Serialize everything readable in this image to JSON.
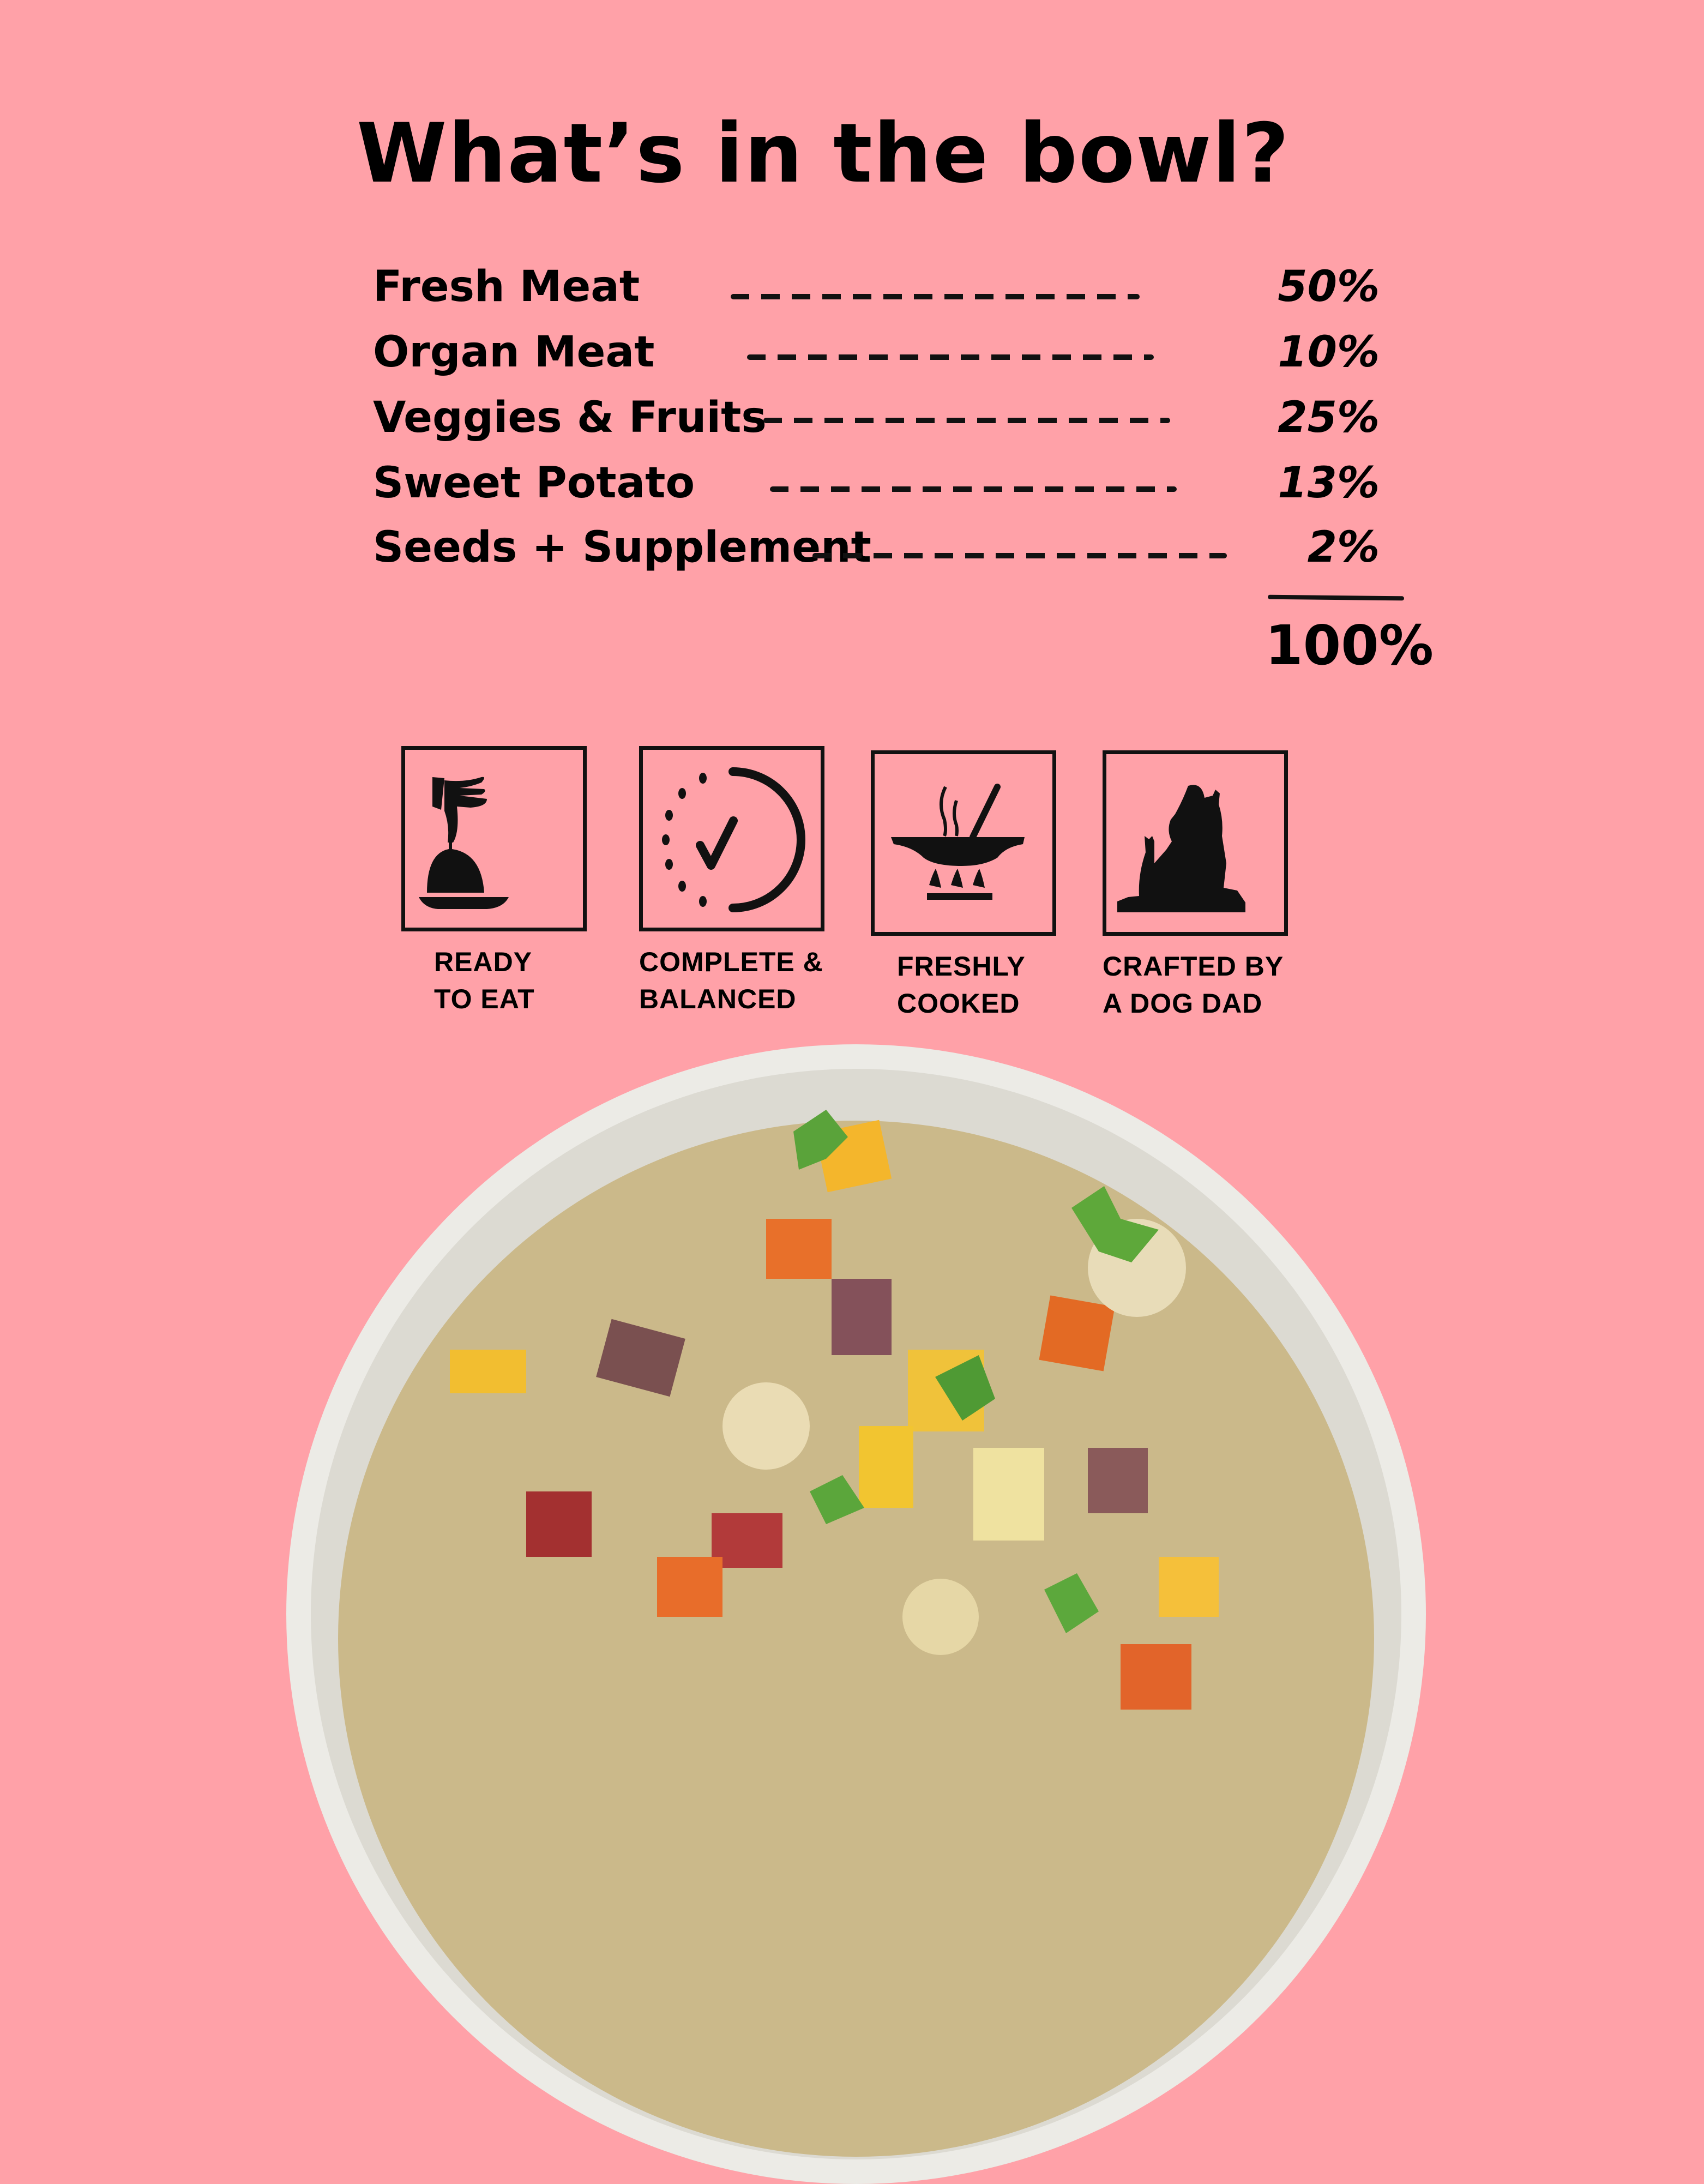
{
  "title": "What’s in the bowl?",
  "ingredients": [
    {
      "label": "Fresh Meat",
      "percent": "50%"
    },
    {
      "label": "Organ Meat",
      "percent": "10%"
    },
    {
      "label": "Veggies & Fruits",
      "percent": "25%"
    },
    {
      "label": "Sweet Potato",
      "percent": "13%"
    },
    {
      "label": "Seeds + Supplement",
      "percent": "2%"
    }
  ],
  "total": "100%",
  "features": [
    {
      "icon": "cloche-serving-icon",
      "label": "READY\nTO EAT"
    },
    {
      "icon": "clock-check-icon",
      "label": "COMPLETE &\nBALANCED"
    },
    {
      "icon": "wok-on-stove-icon",
      "label": "FRESHLY\nCOOKED"
    },
    {
      "icon": "man-with-dogs-icon",
      "label": "CRAFTED BY\nA DOG DAD"
    }
  ],
  "colors": {
    "background": "#ffa1a8",
    "ink": "#111111",
    "bowl": "#ecebe6"
  }
}
